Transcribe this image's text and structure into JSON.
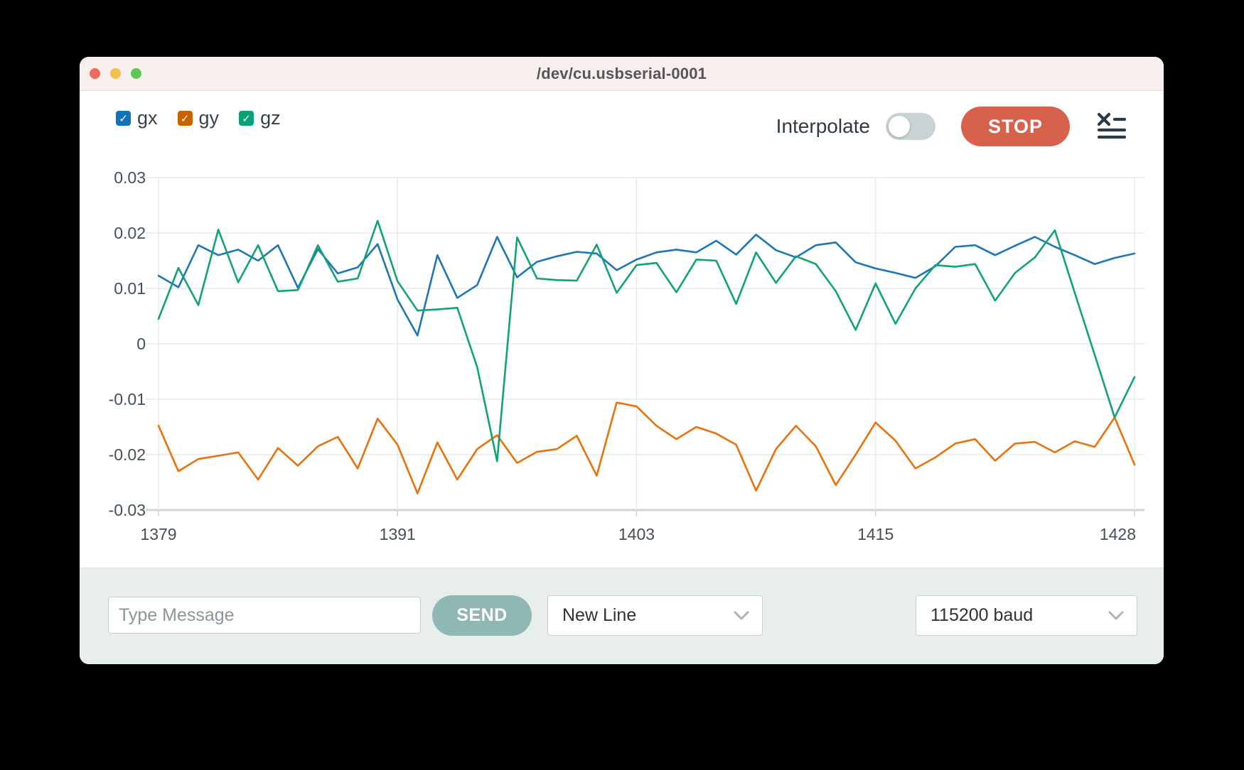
{
  "window": {
    "title": "/dev/cu.usbserial-0001",
    "traffic_lights": [
      "#ee6a5f",
      "#f5bf4f",
      "#61c554"
    ]
  },
  "toolbar": {
    "interpolate_label": "Interpolate",
    "interpolate_on": false,
    "stop_label": "STOP",
    "clear_icon": "x-list-icon"
  },
  "bottom_bar": {
    "input_placeholder": "Type Message",
    "send_label": "SEND",
    "line_ending_selected": "New Line",
    "baud_selected": "115200 baud"
  },
  "chart_data": {
    "type": "line",
    "xlim": [
      1379,
      1428
    ],
    "ylim": [
      -0.03,
      0.03
    ],
    "x_ticks": [
      "1379",
      "1391",
      "1403",
      "1415",
      "1428"
    ],
    "y_ticks": [
      "0.03",
      "0.02",
      "0.01",
      "0",
      "-0.01",
      "-0.02",
      "-0.03"
    ],
    "grid": true,
    "legend_position": "top-left",
    "series": [
      {
        "name": "gx",
        "color": "#1d76b8",
        "checkbox_color": "#1273b8",
        "checked": true,
        "values": [
          0.0123,
          0.0102,
          0.0178,
          0.016,
          0.017,
          0.015,
          0.0178,
          0.0101,
          0.0171,
          0.0127,
          0.0138,
          0.018,
          0.008,
          0.0015,
          0.016,
          0.0083,
          0.0106,
          0.0193,
          0.012,
          0.0148,
          0.0158,
          0.0166,
          0.0163,
          0.0133,
          0.0152,
          0.0165,
          0.017,
          0.0165,
          0.0186,
          0.0161,
          0.0197,
          0.0169,
          0.0156,
          0.0178,
          0.0183,
          0.0147,
          0.0136,
          0.0128,
          0.0119,
          0.014,
          0.0175,
          0.0178,
          0.016,
          0.0177,
          0.0193,
          0.0175,
          0.016,
          0.0144,
          0.0155,
          0.0163
        ]
      },
      {
        "name": "gy",
        "color": "#e8720c",
        "checkbox_color": "#cb6202",
        "checked": true,
        "values": [
          -0.0148,
          -0.023,
          -0.0208,
          -0.0202,
          -0.0196,
          -0.0245,
          -0.0188,
          -0.022,
          -0.0185,
          -0.0168,
          -0.0225,
          -0.0135,
          -0.0182,
          -0.027,
          -0.0178,
          -0.0245,
          -0.019,
          -0.0165,
          -0.0215,
          -0.0195,
          -0.019,
          -0.0166,
          -0.0238,
          -0.0106,
          -0.0113,
          -0.0148,
          -0.0172,
          -0.015,
          -0.0162,
          -0.0182,
          -0.0265,
          -0.019,
          -0.0148,
          -0.0185,
          -0.0255,
          -0.02,
          -0.0142,
          -0.0175,
          -0.0225,
          -0.0205,
          -0.018,
          -0.0172,
          -0.0211,
          -0.018,
          -0.0177,
          -0.0196,
          -0.0176,
          -0.0186,
          -0.0133,
          -0.0218
        ]
      },
      {
        "name": "gz",
        "color": "#11a374",
        "checkbox_color": "#0aa176",
        "checked": true,
        "values": [
          0.0045,
          0.0137,
          0.007,
          0.0206,
          0.0111,
          0.0178,
          0.0095,
          0.0097,
          0.0178,
          0.0112,
          0.0118,
          0.0222,
          0.0113,
          0.006,
          0.0062,
          0.0065,
          -0.0042,
          -0.0212,
          0.0192,
          0.0118,
          0.0115,
          0.0114,
          0.0179,
          0.0092,
          0.0142,
          0.0146,
          0.0093,
          0.0152,
          0.015,
          0.0072,
          0.0165,
          0.011,
          0.0158,
          0.0144,
          0.0095,
          0.0025,
          0.0109,
          0.0036,
          0.01,
          0.0142,
          0.0139,
          0.0144,
          0.0078,
          0.0128,
          0.0156,
          0.0205,
          0.0092,
          -0.002,
          -0.0133,
          -0.006
        ]
      }
    ]
  }
}
